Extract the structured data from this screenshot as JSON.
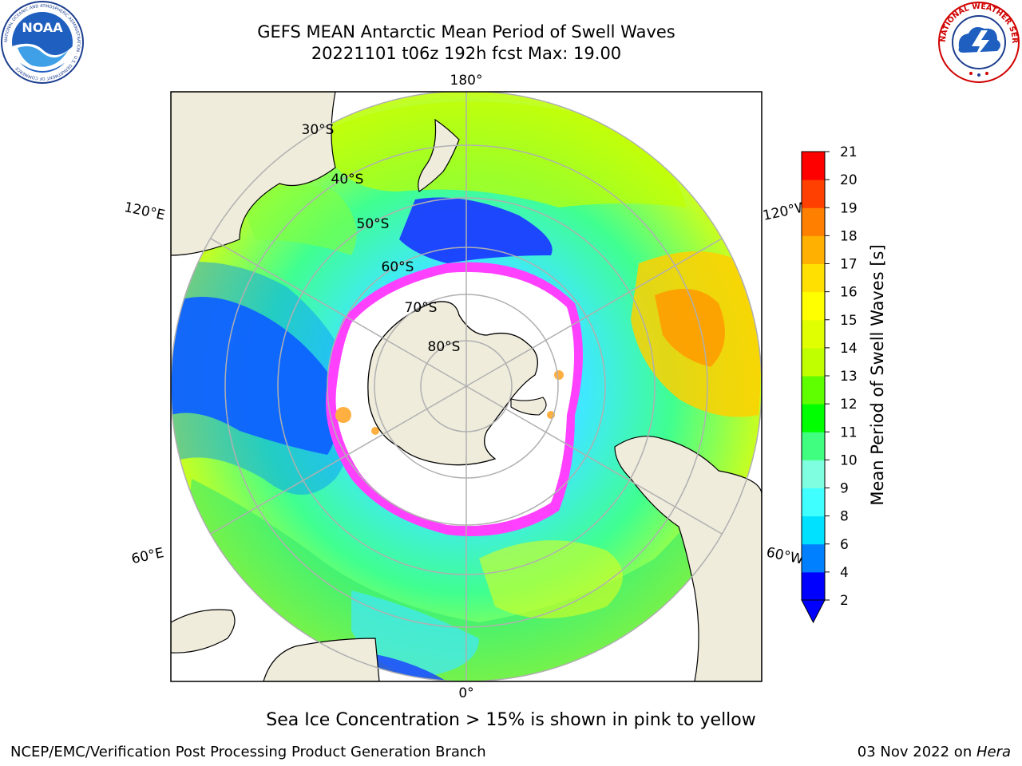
{
  "header": {
    "title_line_1": "GEFS MEAN Antarctic Mean Period of Swell Waves",
    "title_line_2": "20221101 t06z 192h fcst   Max: 19.00"
  },
  "logos": {
    "noaa": {
      "text": "NOAA",
      "ring_text": "NATIONAL OCEANIC AND ATMOSPHERIC ADMINISTRATION · U.S. DEPARTMENT OF COMMERCE"
    },
    "nws": {
      "ring_text": "NATIONAL WEATHER SERVICE"
    }
  },
  "map": {
    "projection": "south-polar-stereographic",
    "longitude_labels": {
      "top": "180°",
      "bottom": "0°",
      "left_upper": "120°E",
      "left_lower": "60°E",
      "right_upper": "120°W",
      "right_lower": "60°W"
    },
    "latitude_labels": [
      "30°S",
      "40°S",
      "50°S",
      "60°S",
      "70°S",
      "80°S"
    ]
  },
  "colorbar": {
    "label": "Mean Period of Swell Waves [s]",
    "ticks": [
      "2",
      "4",
      "6",
      "8",
      "9",
      "10",
      "11",
      "12",
      "13",
      "14",
      "15",
      "16",
      "17",
      "18",
      "19",
      "20",
      "21"
    ],
    "colors": [
      "#0000ff",
      "#0080ff",
      "#00e0ff",
      "#40ffff",
      "#80ffe0",
      "#40ff80",
      "#00ff00",
      "#60ff00",
      "#c0ff00",
      "#e0ff00",
      "#ffff00",
      "#ffe000",
      "#ffb000",
      "#ff8000",
      "#ff4000",
      "#ff0000"
    ]
  },
  "caption": "Sea Ice Concentration > 15% is shown in pink to yellow",
  "footer": {
    "left": "NCEP/EMC/Verification Post Processing Product Generation Branch",
    "right_prefix": "03 Nov 2022 on ",
    "right_host": "Hera"
  },
  "palette": {
    "land": "#efecdc",
    "ice_free": "#ffffff",
    "grid": "#b0b0b0",
    "sea_ice_edge": "#ff40ff"
  }
}
